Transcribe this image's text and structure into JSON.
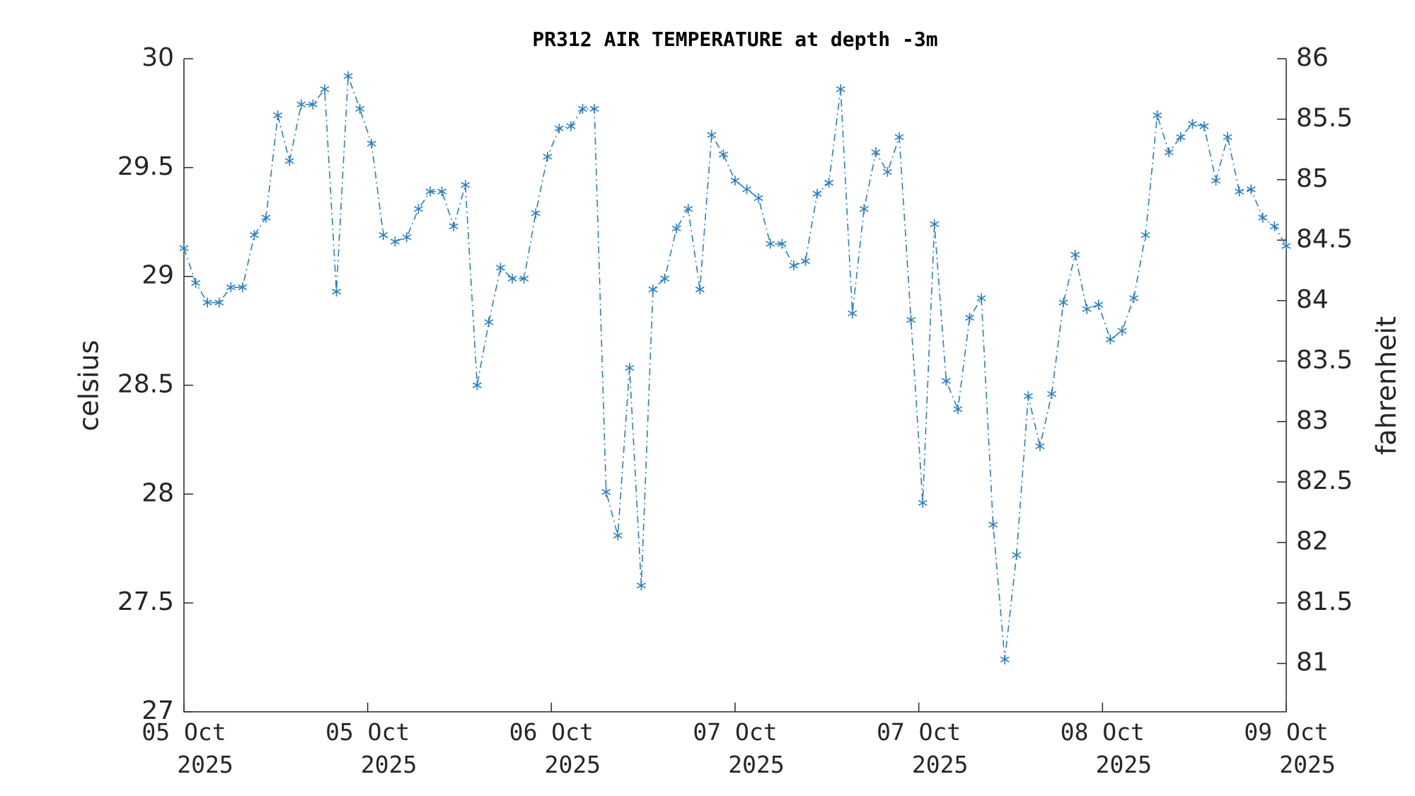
{
  "chart_data": {
    "type": "line",
    "title": "PR312 AIR TEMPERATURE at depth -3m",
    "ylabel": "celsius",
    "y2label": "fahrenheit",
    "color": "#2a7fc4",
    "x": [
      0,
      1,
      2,
      3,
      4,
      5,
      6,
      7,
      8,
      9,
      10,
      11,
      12,
      13,
      14,
      15,
      16,
      17,
      18,
      19,
      20,
      21,
      22,
      23,
      24,
      25,
      26,
      27,
      28,
      29,
      30,
      31,
      32,
      33,
      34,
      35,
      36,
      37,
      38,
      39,
      40,
      41,
      42,
      43,
      44,
      45,
      46,
      47,
      48,
      49,
      50,
      51,
      52,
      53,
      54,
      55,
      56,
      57,
      58,
      59,
      60,
      61,
      62,
      63,
      64,
      65,
      66,
      67,
      68,
      69,
      70,
      71,
      72,
      73,
      74,
      75,
      76,
      77,
      78,
      79,
      80,
      81,
      82,
      83,
      84,
      85,
      86,
      87,
      88,
      89,
      90,
      91,
      92,
      93,
      94
    ],
    "values": [
      29.13,
      28.97,
      28.88,
      28.88,
      28.95,
      28.95,
      29.19,
      29.27,
      29.74,
      29.53,
      29.79,
      29.79,
      29.86,
      28.93,
      29.92,
      29.77,
      29.61,
      29.19,
      29.16,
      29.18,
      29.31,
      29.39,
      29.39,
      29.23,
      29.42,
      28.5,
      28.79,
      29.04,
      28.99,
      28.99,
      29.29,
      29.55,
      29.68,
      29.69,
      29.77,
      29.77,
      28.01,
      27.81,
      28.58,
      27.58,
      28.94,
      28.99,
      29.22,
      29.31,
      28.94,
      29.65,
      29.56,
      29.44,
      29.4,
      29.36,
      29.15,
      29.15,
      29.05,
      29.07,
      29.38,
      29.43,
      29.86,
      28.83,
      29.31,
      29.57,
      29.48,
      29.64,
      28.8,
      27.96,
      29.24,
      28.52,
      28.39,
      28.81,
      28.9,
      27.86,
      27.24,
      27.72,
      28.45,
      28.22,
      28.46,
      28.88,
      29.1,
      28.85,
      28.87,
      28.71,
      28.75,
      28.9,
      29.19,
      29.74,
      29.57,
      29.64,
      29.7,
      29.69,
      29.44,
      29.64,
      29.39,
      29.4,
      29.27,
      29.23,
      29.14
    ],
    "xlim": [
      0,
      94
    ],
    "xticks": [
      {
        "value": 0,
        "label": "05 Oct\n2025"
      },
      {
        "value": 15.667,
        "label": "05 Oct\n2025"
      },
      {
        "value": 31.333,
        "label": "06 Oct\n2025"
      },
      {
        "value": 47,
        "label": "07 Oct\n2025"
      },
      {
        "value": 62.667,
        "label": "07 Oct\n2025"
      },
      {
        "value": 78.333,
        "label": "08 Oct\n2025"
      },
      {
        "value": 94,
        "label": "09 Oct\n2025"
      }
    ],
    "ylim": [
      27,
      30
    ],
    "yticks": [
      27,
      27.5,
      28,
      28.5,
      29,
      29.5,
      30
    ],
    "y2lim": [
      80.6,
      86
    ],
    "y2ticks": [
      81,
      81.5,
      82,
      82.5,
      83,
      83.5,
      84,
      84.5,
      85,
      85.5,
      86
    ],
    "grid": false
  }
}
